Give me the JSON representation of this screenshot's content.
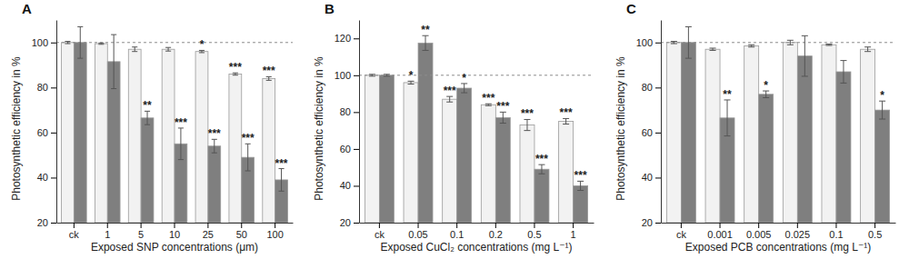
{
  "chart_data": [
    {
      "type": "bar",
      "title": "A",
      "x_label": "Exposed SNP concentrations (μm)",
      "y_label": "Photosynthetic efficiency in %",
      "categories": [
        "ck",
        "1",
        "5",
        "10",
        "25",
        "50",
        "100"
      ],
      "series": [
        {
          "color": "#f2f2f2",
          "values": [
            100,
            99.5,
            97,
            97,
            96,
            86,
            84
          ],
          "errors": [
            0.5,
            0.3,
            1,
            0.8,
            0.5,
            0.5,
            0.8
          ],
          "significance": [
            null,
            null,
            null,
            null,
            "*",
            "***",
            "***"
          ]
        },
        {
          "color": "#7f7f7f",
          "values": [
            100,
            91.5,
            66.5,
            55,
            54,
            49,
            39
          ],
          "errors": [
            7,
            12,
            3,
            7,
            3,
            6,
            5
          ],
          "significance": [
            null,
            null,
            "**",
            "***",
            "***",
            "***",
            "***"
          ]
        }
      ],
      "ylim": [
        20,
        110
      ],
      "yticks": [
        20,
        40,
        60,
        80,
        100
      ],
      "hline": 100,
      "grid": false
    },
    {
      "type": "bar",
      "title": "B",
      "x_label": "Exposed CuCl₂ concentrations (mg L⁻¹)",
      "y_label": "Photosynthetic efficiency in %",
      "categories": [
        "ck",
        "0.05",
        "0.1",
        "0.2",
        "0.5",
        "1"
      ],
      "series": [
        {
          "color": "#f2f2f2",
          "values": [
            100,
            96,
            87,
            84,
            73,
            75
          ],
          "errors": [
            0.5,
            0.8,
            1.5,
            0.5,
            3,
            1.5
          ],
          "significance": [
            null,
            "*",
            "***",
            "***",
            "***",
            "***"
          ]
        },
        {
          "color": "#7f7f7f",
          "values": [
            100,
            117.5,
            93,
            77,
            49,
            40
          ],
          "errors": [
            0.5,
            4,
            2.5,
            3,
            2.5,
            2.5
          ],
          "significance": [
            null,
            "**",
            "*",
            "***",
            "***",
            "***"
          ]
        }
      ],
      "ylim": [
        20,
        130
      ],
      "yticks": [
        20,
        40,
        60,
        80,
        100,
        120
      ],
      "hline": 100,
      "grid": false
    },
    {
      "type": "bar",
      "title": "C",
      "x_label": "Exposed PCB concentrations (mg L⁻¹)",
      "y_label": "Photosynthetic efficiency in %",
      "categories": [
        "ck",
        "0.001",
        "0.005",
        "0.025",
        "0.1",
        "0.5"
      ],
      "series": [
        {
          "color": "#f2f2f2",
          "values": [
            100,
            97,
            98.5,
            100,
            99,
            97
          ],
          "errors": [
            0.5,
            0.5,
            0.5,
            1,
            0.3,
            1
          ],
          "significance": [
            null,
            null,
            null,
            null,
            null,
            null
          ]
        },
        {
          "color": "#7f7f7f",
          "values": [
            100,
            66.5,
            77,
            94,
            87,
            70
          ],
          "errors": [
            7,
            8,
            1.5,
            9,
            5,
            4
          ],
          "significance": [
            null,
            "**",
            "*",
            null,
            null,
            "*"
          ]
        }
      ],
      "ylim": [
        20,
        110
      ],
      "yticks": [
        20,
        40,
        60,
        80,
        100
      ],
      "hline": 100,
      "grid": false
    }
  ]
}
